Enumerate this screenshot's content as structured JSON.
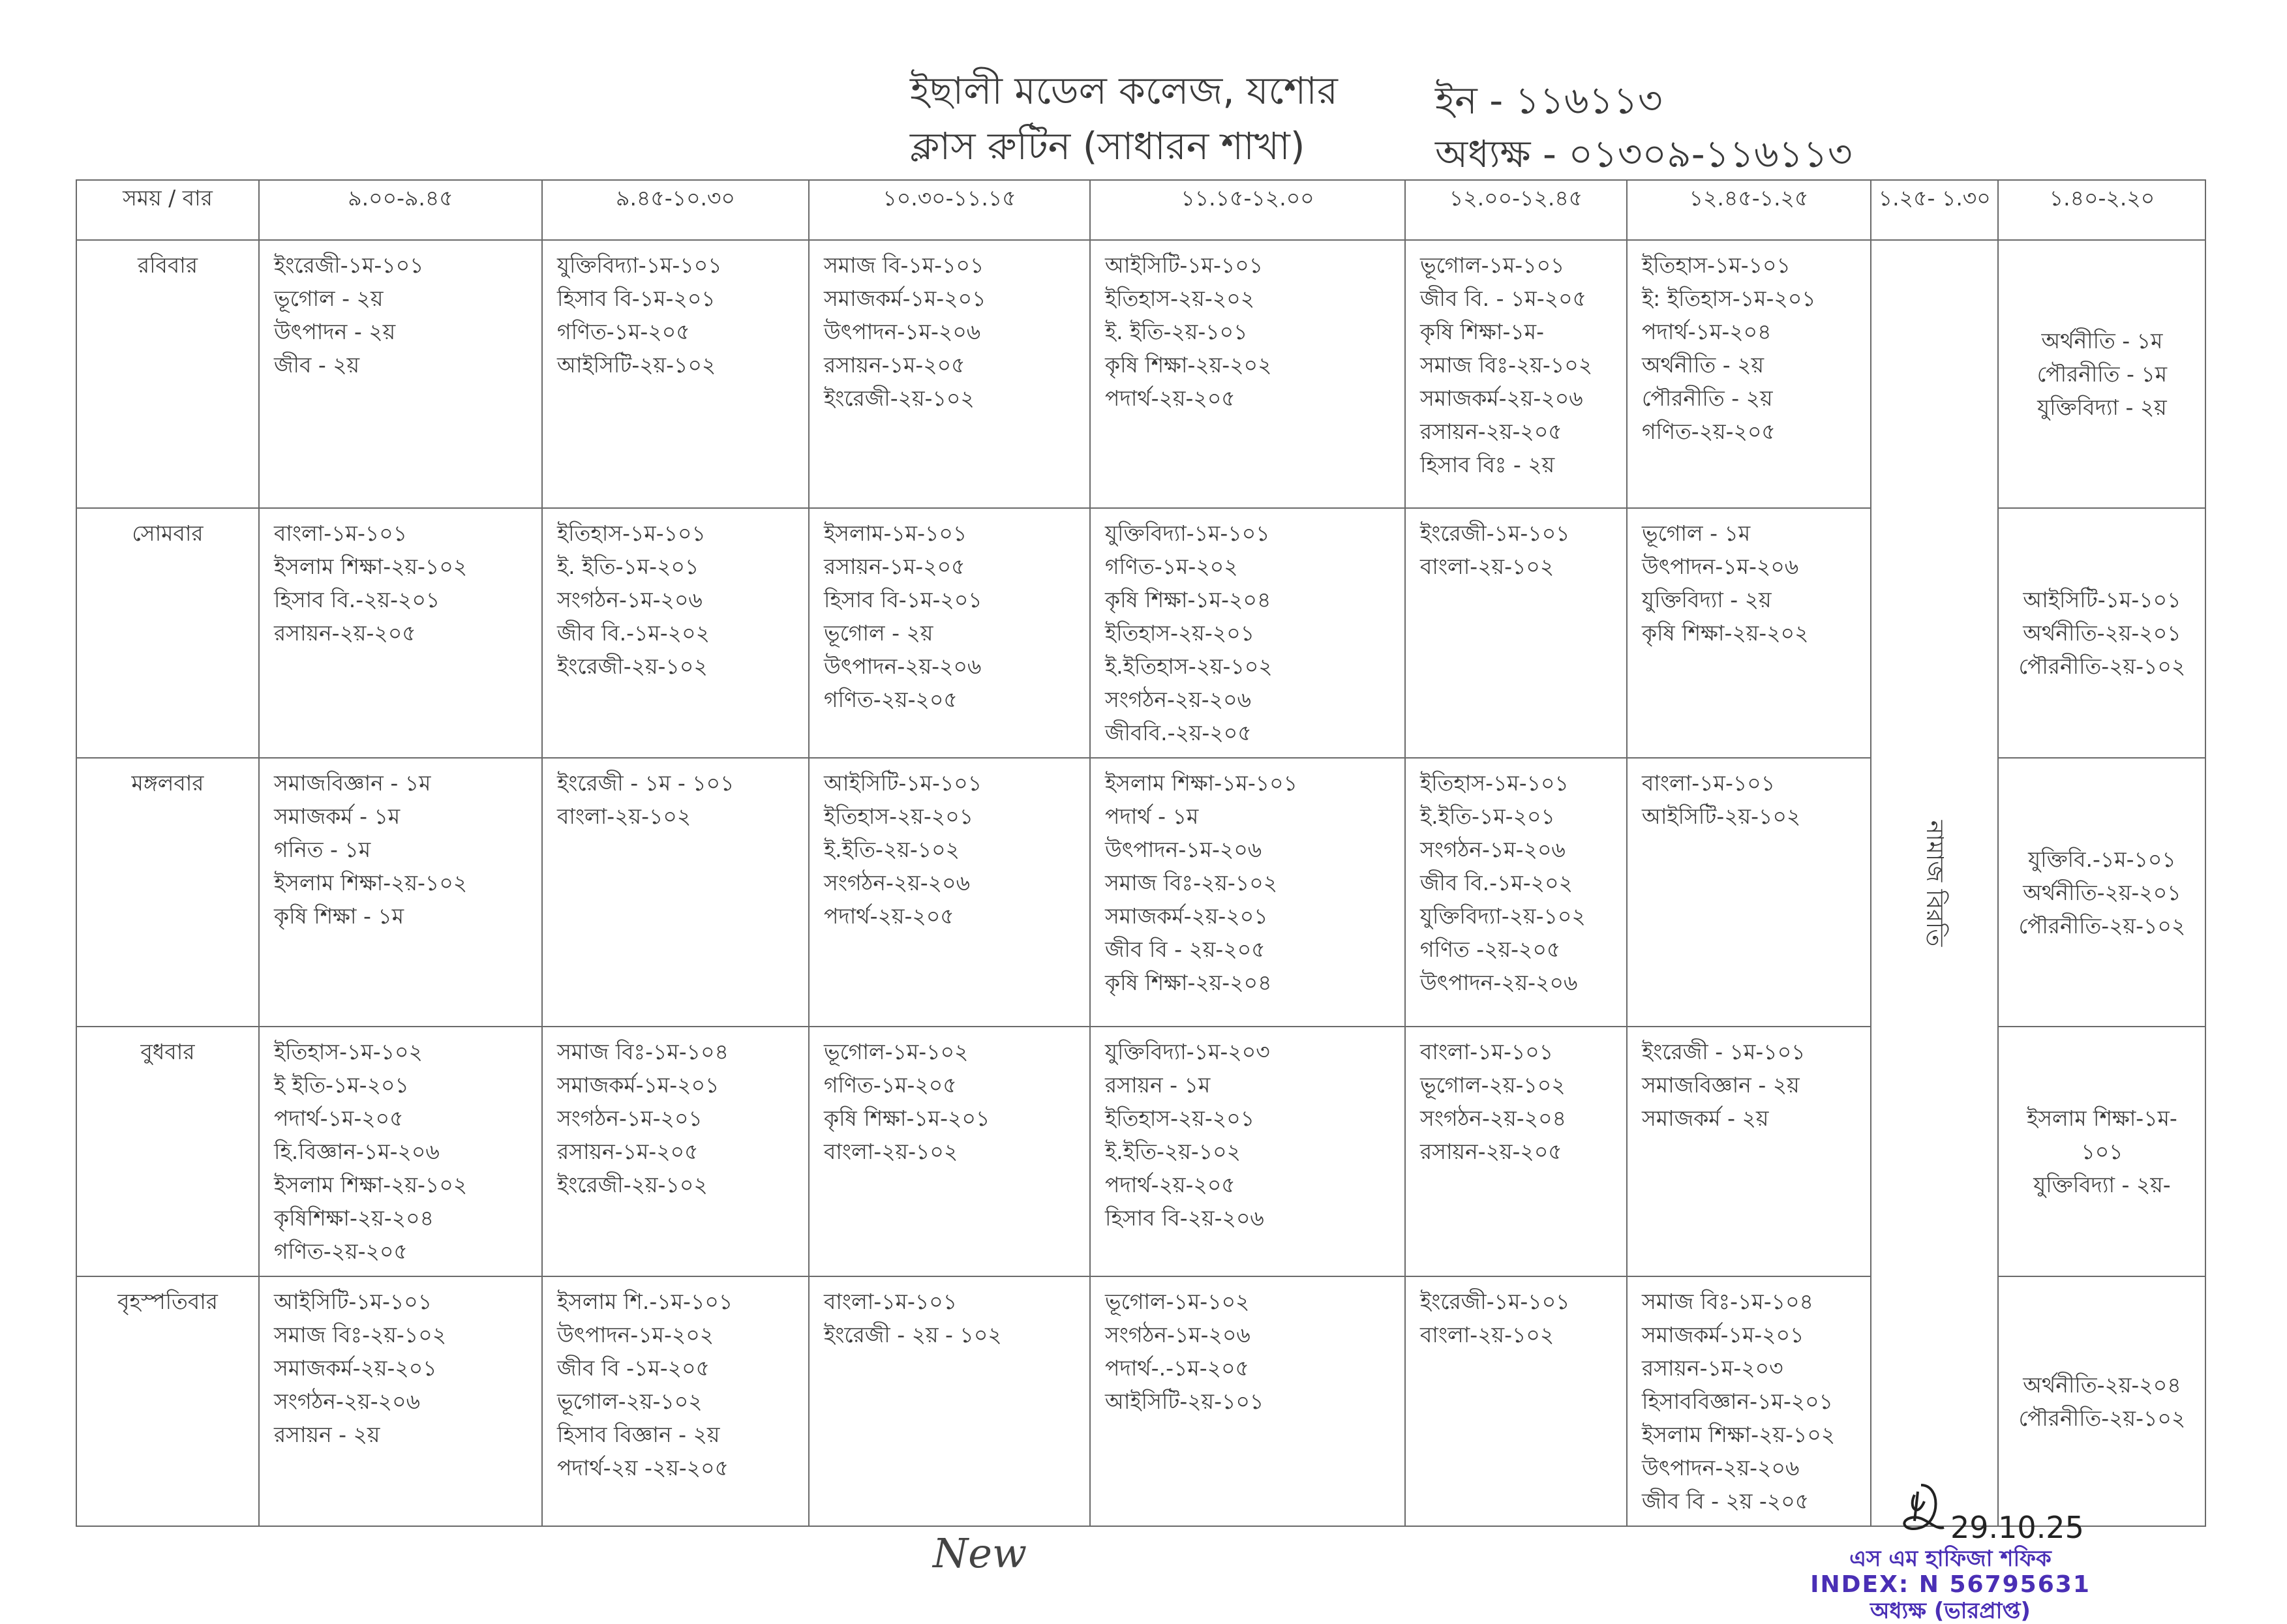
{
  "header": {
    "college": "ইছালী মডেল কলেজ, যশোর",
    "subtitle": "ক্লাস রুটিন (সাধারন শাখা)",
    "ein": "ইন - ১১৬১১৩",
    "principal_phone": "অধ্যক্ষ - ০১৩০৯-১১৬১১৩"
  },
  "table": {
    "columns": [
      "সময় / বার",
      "৯.০০-৯.৪৫",
      "৯.৪৫-১০.৩০",
      "১০.৩০-১১.১৫",
      "১১.১৫-১২.০০",
      "১২.০০-১২.৪৫",
      "১২.৪৫-১.২৫",
      "১.২৫- ১.৩০",
      "১.৪০-২.২০"
    ],
    "break_label": "নামাজ বিরতি",
    "rows": [
      {
        "day": "রবিবার",
        "cells": [
          [
            "ইংরেজী-১ম-১০১",
            "ভূগোল - ২য়",
            "উৎপাদন - ২য়",
            "জীব - ২য়"
          ],
          [
            "যুক্তিবিদ্যা-১ম-১০১",
            "হিসাব বি-১ম-২০১",
            "গণিত-১ম-২০৫",
            "আইসিটি-২য়-১০২"
          ],
          [
            "সমাজ বি-১ম-১০১",
            "সমাজকর্ম-১ম-২০১",
            "উৎপাদন-১ম-২০৬",
            "রসায়ন-১ম-২০৫",
            "ইংরেজী-২য়-১০২"
          ],
          [
            "আইসিটি-১ম-১০১",
            "ইতিহাস-২য়-২০২",
            "ই. ইতি-২য়-১০১",
            "কৃষি শিক্ষা-২য়-২০২",
            "পদার্থ-২য়-২০৫"
          ],
          [
            "ভূগোল-১ম-১০১",
            "জীব বি. - ১ম-২০৫",
            "কৃষি শিক্ষা-১ম-",
            "সমাজ বিঃ-২য়-১০২",
            "সমাজকর্ম-২য়-২০৬",
            "রসায়ন-২য়-২০৫",
            "হিসাব বিঃ - ২য়"
          ],
          [
            "ইতিহাস-১ম-১০১",
            "ই: ইতিহাস-১ম-২০১",
            "পদার্থ-১ম-২০৪",
            "অর্থনীতি - ২য়",
            "পৌরনীতি - ২য়",
            "গণিত-২য়-২০৫"
          ],
          [
            "অর্থনীতি - ১ম",
            "পৌরনীতি - ১ম",
            "যুক্তিবিদ্যা - ২য়"
          ]
        ]
      },
      {
        "day": "সোমবার",
        "cells": [
          [
            "বাংলা-১ম-১০১",
            "ইসলাম শিক্ষা-২য়-১০২",
            "হিসাব বি.-২য়-২০১",
            "রসায়ন-২য়-২০৫"
          ],
          [
            "ইতিহাস-১ম-১০১",
            "ই. ইতি-১ম-২০১",
            "সংগঠন-১ম-২০৬",
            "জীব বি.-১ম-২০২",
            "ইংরেজী-২য়-১০২"
          ],
          [
            "ইসলাম-১ম-১০১",
            "রসায়ন-১ম-২০৫",
            "হিসাব বি-১ম-২০১",
            "ভূগোল - ২য়",
            "উৎপাদন-২য়-২০৬",
            "গণিত-২য়-২০৫"
          ],
          [
            "যুক্তিবিদ্যা-১ম-১০১",
            "গণিত-১ম-২০২",
            "কৃষি শিক্ষা-১ম-২০৪",
            "ইতিহাস-২য়-২০১",
            "ই.ইতিহাস-২য়-১০২",
            "সংগঠন-২য়-২০৬",
            "জীববি.-২য়-২০৫"
          ],
          [
            "ইংরেজী-১ম-১০১",
            "বাংলা-২য়-১০২"
          ],
          [
            "ভূগোল - ১ম",
            "উৎপাদন-১ম-২০৬",
            "যুক্তিবিদ্যা - ২য়",
            "কৃষি শিক্ষা-২য়-২০২"
          ],
          [
            "আইসিটি-১ম-১০১",
            "অর্থনীতি-২য়-২০১",
            "পৌরনীতি-২য়-১০২"
          ]
        ]
      },
      {
        "day": "মঙ্গলবার",
        "cells": [
          [
            "সমাজবিজ্ঞান - ১ম",
            "সমাজকর্ম - ১ম",
            "গনিত - ১ম",
            "ইসলাম শিক্ষা-২য়-১০২",
            "কৃষি শিক্ষা - ১ম"
          ],
          [
            "ইংরেজী - ১ম - ১০১",
            "বাংলা-২য়-১০২"
          ],
          [
            "আইসিটি-১ম-১০১",
            "ইতিহাস-২য়-২০১",
            "ই.ইতি-২য়-১০২",
            "সংগঠন-২য়-২০৬",
            "পদার্থ-২য়-২০৫"
          ],
          [
            "ইসলাম শিক্ষা-১ম-১০১",
            "পদার্থ - ১ম",
            "উৎপাদন-১ম-২০৬",
            "সমাজ বিঃ-২য়-১০২",
            "সমাজকর্ম-২য়-২০১",
            "জীব বি - ২য়-২০৫",
            "কৃষি শিক্ষা-২য়-২০৪"
          ],
          [
            "ইতিহাস-১ম-১০১",
            "ই.ইতি-১ম-২০১",
            "সংগঠন-১ম-২০৬",
            "জীব বি.-১ম-২০২",
            "যুক্তিবিদ্যা-২য়-১০২",
            "গণিত -২য়-২০৫",
            "উৎপাদন-২য়-২০৬"
          ],
          [
            "বাংলা-১ম-১০১",
            "আইসিটি-২য়-১০২"
          ],
          [
            "যুক্তিবি.-১ম-১০১",
            "অর্থনীতি-২য়-২০১",
            "পৌরনীতি-২য়-১০২"
          ]
        ]
      },
      {
        "day": "বুধবার",
        "cells": [
          [
            "ইতিহাস-১ম-১০২",
            "ই ইতি-১ম-২০১",
            "পদার্থ-১ম-২০৫",
            "হি.বিজ্ঞান-১ম-২০৬",
            "ইসলাম শিক্ষা-২য়-১০২",
            "কৃষিশিক্ষা-২য়-২০৪",
            "গণিত-২য়-২০৫"
          ],
          [
            "সমাজ বিঃ-১ম-১০৪",
            "সমাজকর্ম-১ম-২০১",
            "সংগঠন-১ম-২০১",
            "রসায়ন-১ম-২০৫",
            "ইংরেজী-২য়-১০২"
          ],
          [
            "ভূগোল-১ম-১০২",
            "গণিত-১ম-২০৫",
            "কৃষি শিক্ষা-১ম-২০১",
            "বাংলা-২য়-১০২"
          ],
          [
            "যুক্তিবিদ্যা-১ম-২০৩",
            "রসায়ন - ১ম",
            "ইতিহাস-২য়-২০১",
            "ই.ইতি-২য়-১০২",
            "পদার্থ-২য়-২০৫",
            "হিসাব বি-২য়-২০৬"
          ],
          [
            "বাংলা-১ম-১০১",
            "ভূগোল-২য়-১০২",
            "সংগঠন-২য়-২০৪",
            "রসায়ন-২য়-২০৫"
          ],
          [
            "ইংরেজী - ১ম-১০১",
            "সমাজবিজ্ঞান - ২য়",
            "সমাজকর্ম - ২য়"
          ],
          [
            "ইসলাম শিক্ষা-১ম-",
            "১০১",
            "যুক্তিবিদ্যা - ২য়-"
          ]
        ]
      },
      {
        "day": "বৃহস্পতিবার",
        "cells": [
          [
            "আইসিটি-১ম-১০১",
            "সমাজ বিঃ-২য়-১০২",
            "সমাজকর্ম-২য়-২০১",
            "সংগঠন-২য়-২০৬",
            "রসায়ন - ২য়"
          ],
          [
            "ইসলাম শি.-১ম-১০১",
            "উৎপাদন-১ম-২০২",
            "জীব বি -১ম-২০৫",
            "ভূগোল-২য়-১০২",
            "হিসাব বিজ্ঞান - ২য়",
            "পদার্থ-২য় -২য়-২০৫"
          ],
          [
            "বাংলা-১ম-১০১",
            "ইংরেজী - ২য় - ১০২"
          ],
          [
            "ভূগোল-১ম-১০২",
            "সংগঠন-১ম-২০৬",
            "পদার্থ-.-১ম-২০৫",
            "আইসিটি-২য়-১০১"
          ],
          [
            "ইংরেজী-১ম-১০১",
            "বাংলা-২য়-১০২"
          ],
          [
            "সমাজ বিঃ-১ম-১০৪",
            "সমাজকর্ম-১ম-২০১",
            "রসায়ন-১ম-২০৩",
            "হিসাববিজ্ঞান-১ম-২০১",
            "ইসলাম শিক্ষা-২য়-১০২",
            "উৎপাদন-২য়-২০৬",
            "জীব বি - ২য় -২০৫"
          ],
          [
            "অর্থনীতি-২য়-২০৪",
            "পৌরনীতি-২য়-১০২"
          ]
        ]
      }
    ]
  },
  "footer": {
    "handwritten_note": "New",
    "sign_date": "29.10.25",
    "stamp": {
      "name": "এস এম হাফিজা শফিক",
      "index": "INDEX: N 56795631",
      "designation": "অধ্যক্ষ (ভারপ্রাপ্ত)"
    }
  },
  "colors": {
    "stamp_ink": "#4a2fb5",
    "text": "#3b3b3b",
    "grid": "#6a6a6a"
  }
}
